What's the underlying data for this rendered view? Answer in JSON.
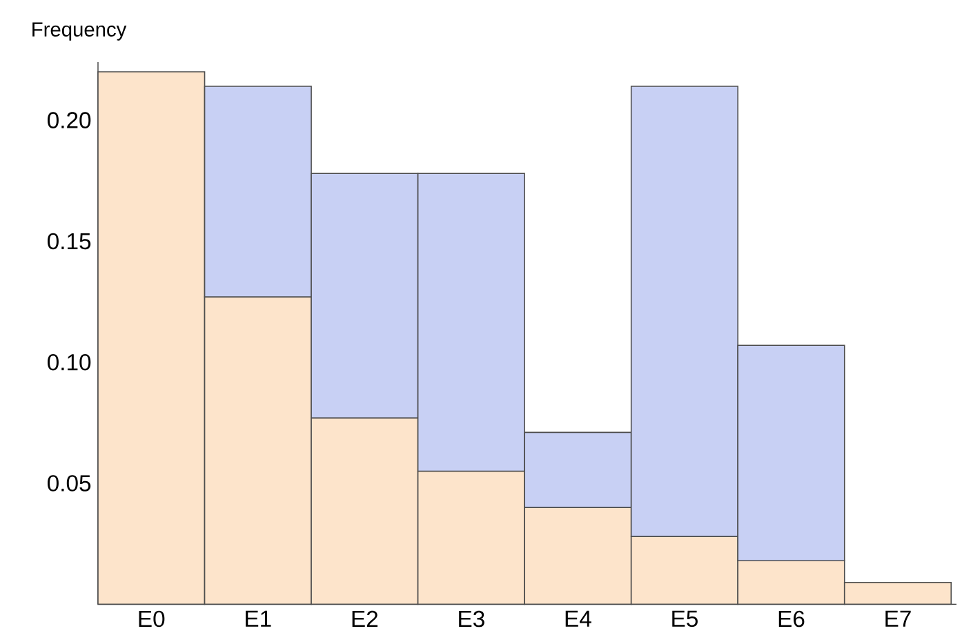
{
  "chart_data": {
    "type": "bar",
    "stacked": true,
    "ylabel": "Frequency",
    "categories": [
      "E0",
      "E1",
      "E2",
      "E3",
      "E4",
      "E5",
      "E6",
      "E7"
    ],
    "series": [
      {
        "color": "#fde4cb",
        "values": [
          0.22,
          0.127,
          0.077,
          0.055,
          0.04,
          0.028,
          0.018,
          0.009
        ]
      },
      {
        "color": "#c8d0f4",
        "values": [
          null,
          0.087,
          0.101,
          0.123,
          0.031,
          0.186,
          0.089,
          null
        ]
      }
    ],
    "ylim": [
      0,
      0.224
    ],
    "yticks": [
      {
        "value": 0.05,
        "label": "0.05"
      },
      {
        "value": 0.1,
        "label": "0.10"
      },
      {
        "value": 0.15,
        "label": "0.15"
      },
      {
        "value": 0.2,
        "label": "0.20"
      }
    ],
    "grid": false
  }
}
